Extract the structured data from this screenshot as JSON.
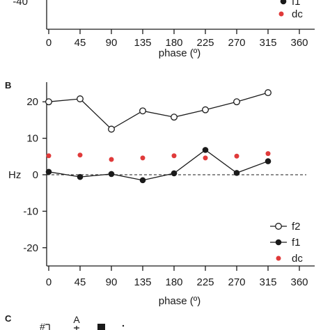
{
  "colors": {
    "axis": "#1a1a1a",
    "line": "#1a1a1a",
    "dc": "#e03a3a",
    "hollow_fill": "#ffffff"
  },
  "top_panel": {
    "partial_tick_label": "-40",
    "xticks": [
      0,
      45,
      90,
      135,
      180,
      225,
      270,
      315,
      360
    ],
    "xtick_labels": [
      "0",
      "45",
      "90",
      "135",
      "180",
      "225",
      "270",
      "315",
      "360"
    ],
    "xlabel": "phase (º)",
    "legend": [
      {
        "label": "f1",
        "marker": "filled-circle",
        "color": "#1a1a1a"
      },
      {
        "label": "dc",
        "marker": "dot",
        "color": "#e03a3a"
      }
    ]
  },
  "panel_b": {
    "letter": "B"
  },
  "panel_c": {
    "letter": "C",
    "fragments": [
      "#",
      "A"
    ]
  },
  "chart_data": {
    "type": "line",
    "title": "",
    "xlabel": "phase (º)",
    "ylabel": "Hz",
    "x": [
      0,
      45,
      90,
      135,
      180,
      225,
      270,
      315
    ],
    "xlim": [
      0,
      360
    ],
    "xticks": [
      0,
      45,
      90,
      135,
      180,
      225,
      270,
      315,
      360
    ],
    "xtick_labels": [
      "0",
      "45",
      "90",
      "135",
      "180",
      "225",
      "270",
      "315",
      "360"
    ],
    "ylim": [
      -25,
      25
    ],
    "yticks": [
      20,
      10,
      0,
      -10,
      -20
    ],
    "ytick_labels": [
      "20",
      "10",
      "0",
      "-10",
      "-20"
    ],
    "zero_line": "dashed",
    "grid": false,
    "legend_position": "bottom-right",
    "series": [
      {
        "name": "f2",
        "marker": "open-circle",
        "connected": true,
        "color": "#1a1a1a",
        "values": [
          20.0,
          20.8,
          12.5,
          17.5,
          15.8,
          17.8,
          20.0,
          22.5
        ]
      },
      {
        "name": "f1",
        "marker": "filled-circle",
        "connected": true,
        "color": "#1a1a1a",
        "values": [
          0.8,
          -0.6,
          0.2,
          -1.5,
          0.4,
          6.8,
          0.5,
          3.7
        ]
      },
      {
        "name": "dc",
        "marker": "dot",
        "connected": false,
        "color": "#e03a3a",
        "values": [
          5.2,
          5.4,
          4.2,
          4.6,
          5.2,
          4.6,
          5.1,
          5.8
        ]
      }
    ]
  }
}
